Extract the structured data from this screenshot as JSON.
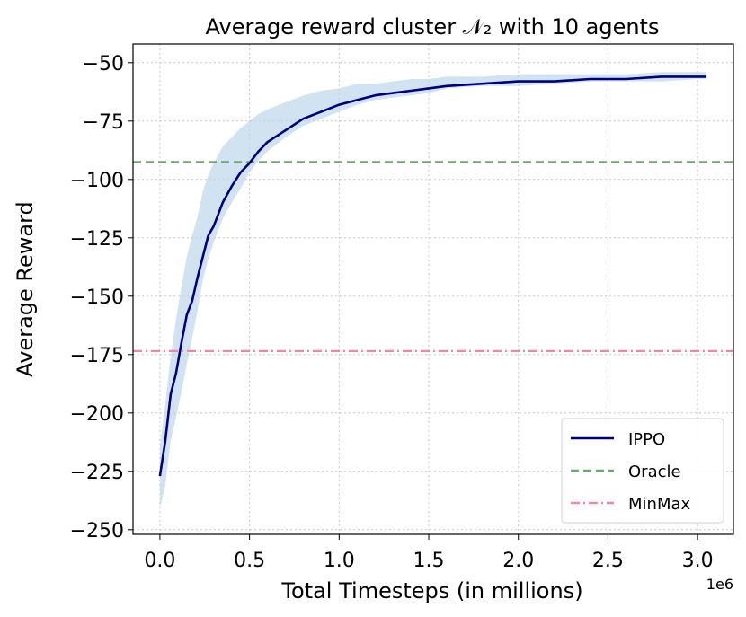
{
  "chart_data": {
    "type": "line",
    "title": "Average reward cluster 𝒩₂ with 10 agents",
    "xlabel": "Total Timesteps (in millions)",
    "ylabel": "Average Reward",
    "x_multiplier_label": "1e6",
    "xlim": [
      -0.15,
      3.2
    ],
    "ylim": [
      -252,
      -42
    ],
    "xticks": [
      0.0,
      0.5,
      1.0,
      1.5,
      2.0,
      2.5,
      3.0
    ],
    "xtick_labels": [
      "0.0",
      "0.5",
      "1.0",
      "1.5",
      "2.0",
      "2.5",
      "3.0"
    ],
    "yticks": [
      -50,
      -75,
      -100,
      -125,
      -150,
      -175,
      -200,
      -225,
      -250
    ],
    "ytick_labels": [
      "−50",
      "−75",
      "−100",
      "−125",
      "−150",
      "−175",
      "−200",
      "−225",
      "−250"
    ],
    "grid": true,
    "legend_position": "lower-right",
    "series": [
      {
        "name": "IPPO",
        "color": "#00007f",
        "style": "solid",
        "x": [
          0.0,
          0.03,
          0.06,
          0.09,
          0.12,
          0.15,
          0.18,
          0.21,
          0.24,
          0.27,
          0.3,
          0.35,
          0.4,
          0.45,
          0.5,
          0.55,
          0.6,
          0.7,
          0.8,
          0.9,
          1.0,
          1.1,
          1.2,
          1.3,
          1.4,
          1.5,
          1.6,
          1.8,
          2.0,
          2.2,
          2.4,
          2.6,
          2.8,
          3.0,
          3.05
        ],
        "y": [
          -227,
          -212,
          -192,
          -183,
          -170,
          -158,
          -152,
          -142,
          -133,
          -124,
          -120,
          -110,
          -103,
          -97,
          -93,
          -88,
          -84,
          -79,
          -74,
          -71,
          -68,
          -66,
          -64,
          -63,
          -62,
          -61,
          -60,
          -59,
          -58,
          -58,
          -57,
          -57,
          -56,
          -56,
          -56
        ],
        "band_low": [
          -241,
          -231,
          -212,
          -202,
          -191,
          -179,
          -168,
          -156,
          -143,
          -134,
          -127,
          -117,
          -110,
          -104,
          -97,
          -92,
          -88,
          -82,
          -77,
          -74,
          -71,
          -68,
          -66,
          -65,
          -64,
          -63,
          -61,
          -60,
          -60,
          -59,
          -58,
          -58,
          -58,
          -57,
          -57
        ],
        "band_high": [
          -214,
          -196,
          -176,
          -160,
          -146,
          -133,
          -124,
          -116,
          -105,
          -98,
          -93,
          -86,
          -82,
          -78,
          -75,
          -72,
          -70,
          -67,
          -64,
          -62,
          -61,
          -59,
          -59,
          -58,
          -57,
          -57,
          -56,
          -56,
          -55,
          -55,
          -55,
          -55,
          -54,
          -54,
          -54
        ],
        "band_color": "#b8d4ea"
      },
      {
        "name": "Oracle",
        "color": "#6aab6a",
        "style": "dashed",
        "y_constant": -92.5
      },
      {
        "name": "MinMax",
        "color": "#ea8a9a",
        "style": "dashdot",
        "y_constant": -173.5
      }
    ]
  }
}
